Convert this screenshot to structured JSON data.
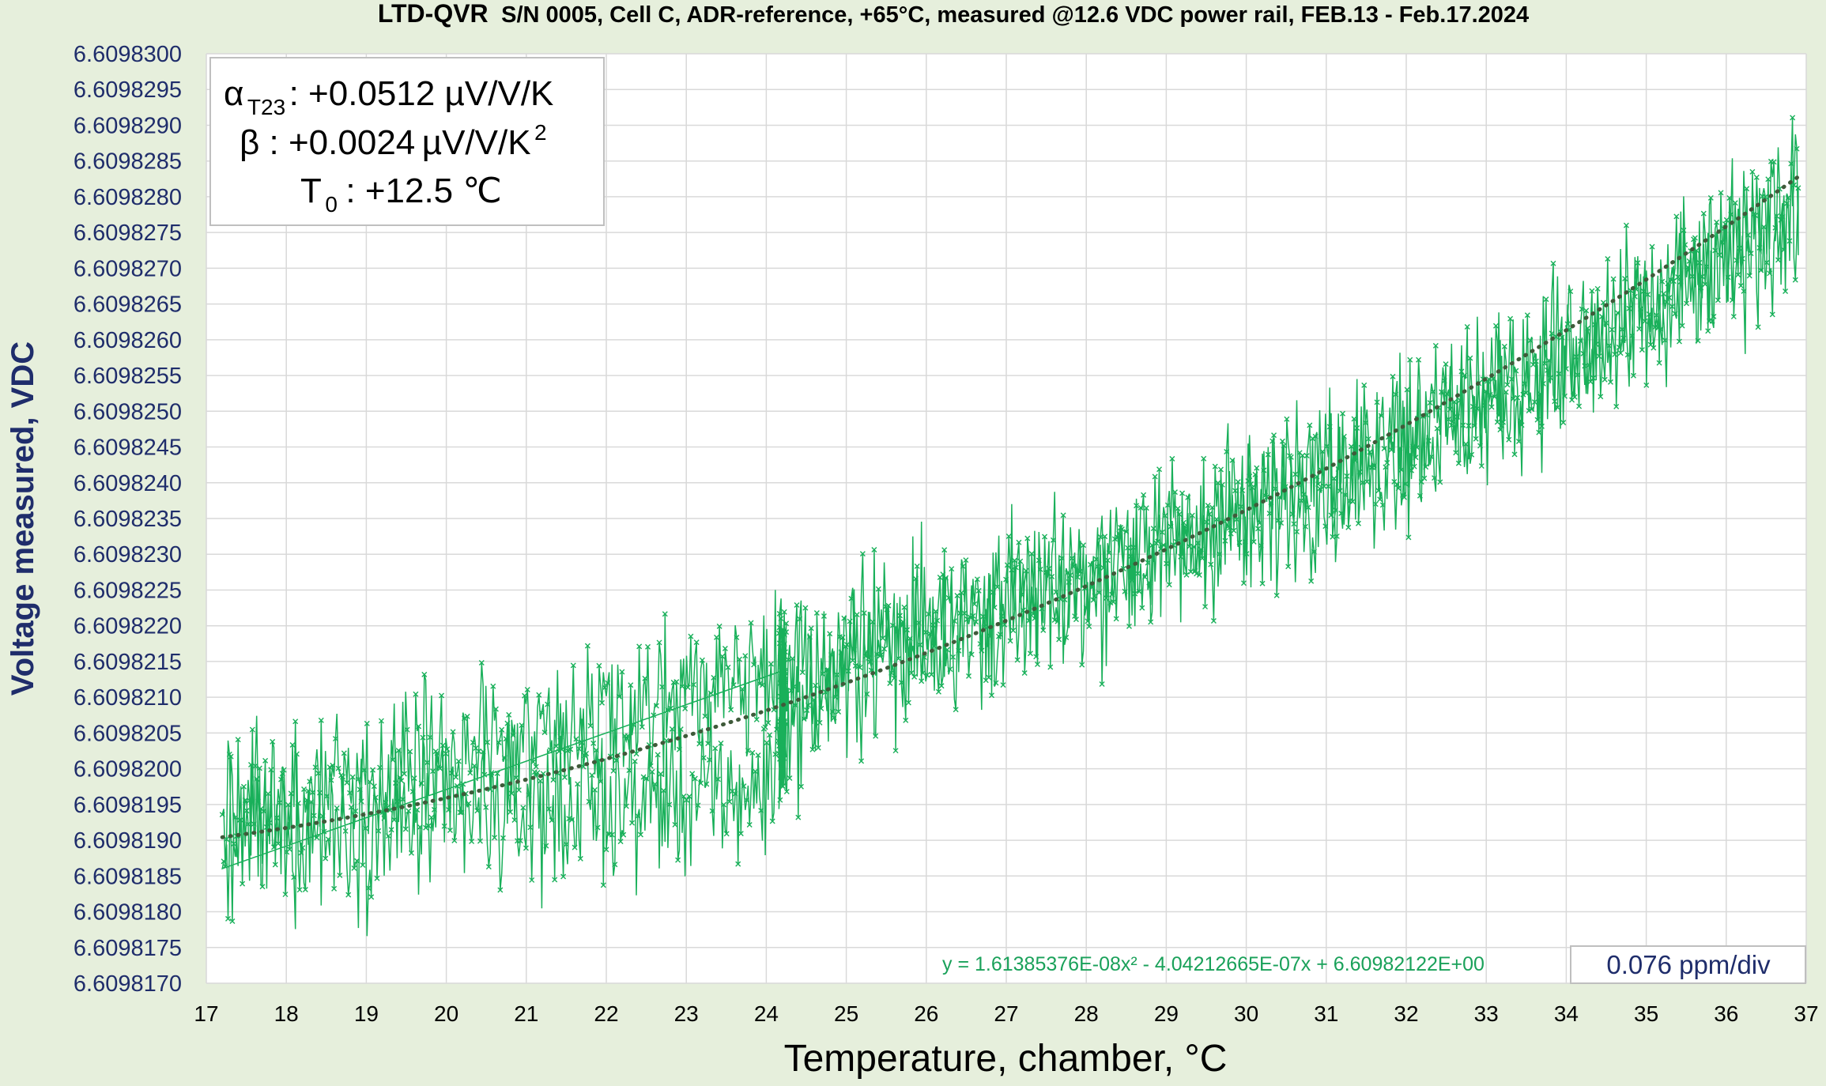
{
  "title": {
    "brand": "LTD-QVR",
    "text": "S/N 0005, Cell C, ADR-reference, +65°C, measured @12.6 VDC power rail, FEB.13 - Feb.17.2024"
  },
  "params": {
    "alpha_symbol": "α",
    "alpha_sub": "T23",
    "alpha_value": ": +0.0512 µV/V/K",
    "beta_line_a": "β : +0.0024",
    "beta_line_b": "µV/V/K",
    "beta_sup": "2",
    "t0_symbol": "T",
    "t0_sub": "0",
    "t0_value": ": +12.5 ℃"
  },
  "equation_text": "y = 1.61385376E-08x² - 4.04212665E-07x + 6.60982122E+00",
  "ppm_label": "0.076 ppm/div",
  "colors": {
    "background": "#e6efdc",
    "plot_bg": "#ffffff",
    "grid": "#d9d9d9",
    "series": "#19b05a",
    "trend": "#3f5a3a",
    "axis_text": "#1f2d6b"
  },
  "chart_data": {
    "type": "line",
    "title": "LTD-QVR S/N 0005, Cell C, ADR-reference, +65°C, measured @12.6 VDC power rail, FEB.13 - Feb.17.2024",
    "xlabel": "Temperature, chamber, °C",
    "ylabel": "Voltage measured, VDC",
    "xlim": [
      17,
      37
    ],
    "ylim": [
      6.609817,
      6.60983
    ],
    "x_ticks": [
      "17",
      "18",
      "19",
      "20",
      "21",
      "22",
      "23",
      "24",
      "25",
      "26",
      "27",
      "28",
      "29",
      "30",
      "31",
      "32",
      "33",
      "34",
      "35",
      "36",
      "37"
    ],
    "y_ticks": [
      "6.6098300",
      "6.6098295",
      "6.6098290",
      "6.6098285",
      "6.6098280",
      "6.6098275",
      "6.6098270",
      "6.6098265",
      "6.6098260",
      "6.6098255",
      "6.6098250",
      "6.6098245",
      "6.6098240",
      "6.6098235",
      "6.6098230",
      "6.6098225",
      "6.6098220",
      "6.6098215",
      "6.6098210",
      "6.6098205",
      "6.6098200",
      "6.6098195",
      "6.6098190",
      "6.6098185",
      "6.6098180",
      "6.6098175",
      "6.6098170"
    ],
    "grid": true,
    "legend": "none",
    "trendline": {
      "type": "polynomial",
      "order": 2,
      "coefficients": [
        1.61385376e-08,
        -4.04212665e-07,
        6.60982122
      ],
      "style": "dotted"
    },
    "series": [
      {
        "marker": "x",
        "envelope": {
          "description": "noisy measured voltage vs temperature, cycle up and down with hysteresis near 24.2 °C",
          "x": [
            17.2,
            17.5,
            18,
            19,
            20,
            21,
            22,
            23,
            24,
            24.2,
            25,
            26,
            27,
            28,
            29,
            30,
            31,
            32,
            33,
            34,
            35,
            36,
            36.9
          ],
          "y_center_upper": [
            6.6098192,
            6.6098194,
            6.6098196,
            6.6098199,
            6.6098202,
            6.6098205,
            6.6098208,
            6.6098211,
            6.6098213,
            6.6098214,
            6.6098216,
            6.609822,
            6.6098224,
            6.6098228,
            6.6098232,
            6.6098237,
            6.6098242,
            6.6098247,
            6.6098253,
            6.6098259,
            6.6098265,
            6.6098272,
            6.609828
          ],
          "y_center_lower": [
            6.609819,
            6.6098191,
            6.6098191,
            6.6098192,
            6.6098193,
            6.6098194,
            6.6098195,
            6.6098196,
            6.6098197,
            6.6098205,
            6.6098214,
            6.6098218,
            6.6098222,
            6.6098226,
            6.609823,
            6.6098235,
            6.609824,
            6.6098245,
            6.609825,
            6.6098256,
            6.6098263,
            6.609827,
            6.6098278
          ],
          "noise_amplitude": 1.1e-06
        }
      }
    ]
  }
}
